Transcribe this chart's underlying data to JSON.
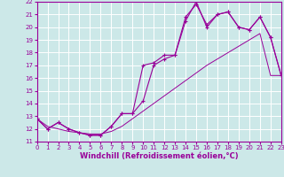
{
  "xlabel": "Windchill (Refroidissement éolien,°C)",
  "xlim": [
    0,
    23
  ],
  "ylim": [
    11,
    22
  ],
  "xticks": [
    0,
    1,
    2,
    3,
    4,
    5,
    6,
    7,
    8,
    9,
    10,
    11,
    12,
    13,
    14,
    15,
    16,
    17,
    18,
    19,
    20,
    21,
    22,
    23
  ],
  "yticks": [
    11,
    12,
    13,
    14,
    15,
    16,
    17,
    18,
    19,
    20,
    21,
    22
  ],
  "bg_color": "#cce8e8",
  "line_color": "#990099",
  "grid_color": "#ffffff",
  "curve1_x": [
    0,
    1,
    2,
    3,
    4,
    5,
    6,
    7,
    8,
    9,
    10,
    11,
    12,
    13,
    14,
    15,
    16,
    17,
    18,
    19,
    20,
    21,
    22,
    23
  ],
  "curve1_y": [
    12.8,
    12.0,
    12.5,
    12.0,
    11.7,
    11.5,
    11.5,
    12.2,
    13.2,
    13.2,
    14.2,
    17.0,
    17.5,
    17.8,
    20.8,
    21.8,
    20.2,
    21.0,
    21.2,
    20.0,
    19.8,
    20.8,
    19.2,
    16.2
  ],
  "curve2_x": [
    0,
    1,
    2,
    3,
    4,
    5,
    6,
    7,
    8,
    9,
    10,
    11,
    12,
    13,
    14,
    15,
    16,
    17,
    18,
    19,
    20,
    21,
    22,
    23
  ],
  "curve2_y": [
    12.8,
    12.0,
    12.5,
    12.0,
    11.7,
    11.5,
    11.5,
    12.2,
    13.2,
    13.2,
    17.0,
    17.2,
    17.8,
    17.8,
    20.5,
    22.0,
    20.0,
    21.0,
    21.2,
    20.0,
    19.8,
    20.8,
    19.2,
    16.2
  ],
  "curve3_x": [
    0,
    1,
    2,
    3,
    4,
    5,
    6,
    7,
    8,
    9,
    10,
    11,
    12,
    13,
    14,
    15,
    16,
    17,
    18,
    19,
    20,
    21,
    22,
    23
  ],
  "curve3_y": [
    12.8,
    12.2,
    12.0,
    11.8,
    11.7,
    11.6,
    11.6,
    11.8,
    12.2,
    12.8,
    13.4,
    14.0,
    14.6,
    15.2,
    15.8,
    16.4,
    17.0,
    17.5,
    18.0,
    18.5,
    19.0,
    19.5,
    16.2,
    16.2
  ],
  "tick_fontsize": 5,
  "xlabel_fontsize": 6
}
